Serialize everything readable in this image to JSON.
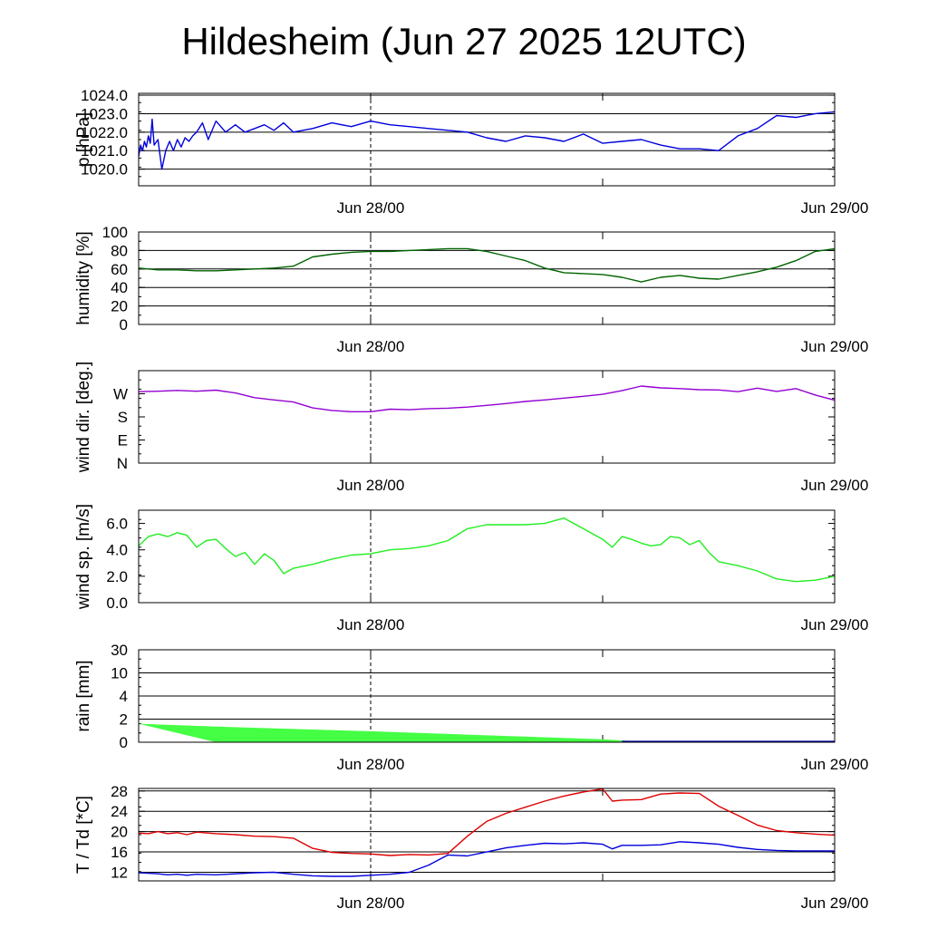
{
  "title": "Hildesheim (Jun 27 2025 12UTC)",
  "x_tick_labels": [
    "Jun 28/00",
    "Jun 29/00"
  ],
  "colors": {
    "pressure": "#0000dd",
    "humidity": "#006400",
    "wind_dir": "#9400d3",
    "wind_speed": "#22ee22",
    "rain_fill": "#44ff44",
    "temperature": "#dd0000",
    "dewpoint": "#0000dd"
  },
  "chart_data": [
    {
      "type": "line",
      "ylabel": "p [hPa]",
      "grid": true,
      "yticks": [
        "1020.0",
        "1021.0",
        "1022.0",
        "1023.0",
        "1024.0"
      ],
      "ylim": [
        1019.1,
        1024.1
      ],
      "xlim": [
        0,
        36
      ],
      "x": [
        0,
        0.1,
        0.2,
        0.3,
        0.4,
        0.5,
        0.6,
        0.7,
        0.8,
        1,
        1.2,
        1.4,
        1.6,
        1.8,
        2,
        2.2,
        2.4,
        2.6,
        2.8,
        3,
        3.3,
        3.6,
        4,
        4.5,
        5,
        5.5,
        6,
        6.5,
        7,
        7.5,
        8,
        9,
        10,
        11,
        12,
        13,
        14,
        15,
        16,
        17,
        18,
        19,
        20,
        21,
        22,
        23,
        24,
        25,
        26,
        27,
        28,
        29,
        30,
        31,
        32,
        33,
        34,
        35,
        36
      ],
      "values": [
        1020.7,
        1021.3,
        1021.0,
        1021.5,
        1021.2,
        1021.8,
        1021.4,
        1022.7,
        1021.3,
        1021.6,
        1020.0,
        1021.0,
        1021.5,
        1021.0,
        1021.6,
        1021.2,
        1021.7,
        1021.5,
        1021.8,
        1022.0,
        1022.5,
        1021.6,
        1022.6,
        1022.0,
        1022.4,
        1022.0,
        1022.2,
        1022.4,
        1022.1,
        1022.5,
        1022.0,
        1022.2,
        1022.5,
        1022.3,
        1022.6,
        1022.4,
        1022.3,
        1022.2,
        1022.1,
        1022.0,
        1021.7,
        1021.5,
        1021.8,
        1021.7,
        1021.5,
        1021.9,
        1021.4,
        1021.5,
        1021.6,
        1021.3,
        1021.1,
        1021.1,
        1021.0,
        1021.8,
        1022.2,
        1022.9,
        1022.8,
        1023.0,
        1023.1
      ]
    },
    {
      "type": "line",
      "ylabel": "humidity [%]",
      "grid": true,
      "yticks": [
        "0",
        "20",
        "40",
        "60",
        "80",
        "100"
      ],
      "ylim": [
        0,
        100
      ],
      "xlim": [
        0,
        36
      ],
      "x": [
        0,
        1,
        2,
        3,
        4,
        5,
        6,
        7,
        8,
        9,
        10,
        11,
        12,
        13,
        14,
        15,
        16,
        17,
        18,
        19,
        20,
        21,
        22,
        23,
        24,
        25,
        26,
        27,
        28,
        29,
        30,
        31,
        32,
        33,
        34,
        35,
        36
      ],
      "values": [
        61,
        59,
        59,
        58,
        58,
        59,
        60,
        61,
        63,
        73,
        76,
        78,
        79,
        79,
        80,
        81,
        82,
        82,
        79,
        74,
        69,
        61,
        56,
        55,
        54,
        51,
        46,
        51,
        53,
        50,
        49,
        53,
        57,
        62,
        69,
        79,
        82
      ]
    },
    {
      "type": "line",
      "ylabel": "wind dir. [deg.]",
      "grid": false,
      "yticks": [
        "N",
        "E",
        "S",
        "W"
      ],
      "ytick_values": [
        0,
        90,
        180,
        270
      ],
      "ylim": [
        0,
        360
      ],
      "xlim": [
        0,
        36
      ],
      "x": [
        0,
        1,
        2,
        3,
        4,
        5,
        6,
        7,
        8,
        9,
        10,
        11,
        12,
        13,
        14,
        15,
        16,
        17,
        18,
        19,
        20,
        21,
        22,
        23,
        24,
        25,
        26,
        27,
        28,
        29,
        30,
        31,
        32,
        33,
        34,
        35,
        36
      ],
      "values": [
        278,
        280,
        283,
        280,
        284,
        273,
        255,
        246,
        238,
        215,
        205,
        200,
        200,
        210,
        208,
        212,
        214,
        218,
        225,
        232,
        240,
        246,
        253,
        260,
        268,
        282,
        300,
        293,
        290,
        286,
        285,
        278,
        292,
        279,
        290,
        265,
        245
      ]
    },
    {
      "type": "line",
      "ylabel": "wind sp. [m/s]",
      "grid": false,
      "yticks": [
        "0.0",
        "2.0",
        "4.0",
        "6.0"
      ],
      "ylim": [
        0,
        7
      ],
      "xlim": [
        0,
        36
      ],
      "x": [
        0,
        0.5,
        1,
        1.5,
        2,
        2.5,
        3,
        3.5,
        4,
        4.5,
        5,
        5.5,
        6,
        6.5,
        7,
        7.5,
        8,
        9,
        10,
        11,
        12,
        13,
        14,
        15,
        16,
        17,
        18,
        19,
        20,
        21,
        22,
        23,
        24,
        24.5,
        25,
        25.5,
        26,
        26.5,
        27,
        27.5,
        28,
        28.5,
        29,
        29.5,
        30,
        31,
        32,
        33,
        34,
        35,
        36
      ],
      "values": [
        4.3,
        5.0,
        5.2,
        5.0,
        5.3,
        5.1,
        4.2,
        4.7,
        4.8,
        4.1,
        3.5,
        3.8,
        2.9,
        3.7,
        3.2,
        2.2,
        2.6,
        2.9,
        3.3,
        3.6,
        3.7,
        4.0,
        4.1,
        4.3,
        4.7,
        5.6,
        5.9,
        5.9,
        5.9,
        6.0,
        6.4,
        5.6,
        4.8,
        4.2,
        5.0,
        4.8,
        4.5,
        4.3,
        4.4,
        5.0,
        4.9,
        4.4,
        4.7,
        3.8,
        3.1,
        2.8,
        2.4,
        1.8,
        1.6,
        1.7,
        2.0
      ]
    },
    {
      "type": "area",
      "ylabel": "rain [mm]",
      "grid": true,
      "yticks": [
        "0",
        "2",
        "4",
        "10",
        "30"
      ],
      "ylim": [
        0,
        30
      ],
      "xlim": [
        0,
        36
      ],
      "x": [
        0,
        4,
        12,
        24,
        26,
        36
      ],
      "upper": [
        1.6,
        1.35,
        0.95,
        0.25,
        0.05,
        0
      ],
      "lower": [
        1.6,
        0,
        0,
        0,
        0,
        0
      ]
    },
    {
      "type": "line",
      "ylabel": "T / Td [*C]",
      "grid": true,
      "yticks": [
        "12",
        "16",
        "20",
        "24",
        "28"
      ],
      "ylim": [
        10.3,
        28.5
      ],
      "xlim": [
        0,
        36
      ],
      "x": [
        0,
        0.5,
        1,
        1.5,
        2,
        2.5,
        3,
        4,
        5,
        6,
        7,
        8,
        9,
        10,
        11,
        12,
        13,
        14,
        15,
        16,
        17,
        18,
        19,
        20,
        21,
        22,
        23,
        24,
        24.5,
        25,
        26,
        27,
        28,
        29,
        30,
        31,
        32,
        33,
        34,
        35,
        36
      ],
      "series": [
        {
          "values": [
            19.7,
            19.6,
            20.0,
            19.6,
            19.8,
            19.4,
            19.9,
            19.6,
            19.4,
            19.1,
            19.0,
            18.7,
            16.7,
            15.9,
            15.7,
            15.6,
            15.3,
            15.5,
            15.4,
            15.7,
            19.1,
            22.0,
            23.6,
            24.8,
            26.0,
            27.0,
            27.8,
            28.4,
            26.0,
            26.2,
            26.3,
            27.4,
            27.6,
            27.5,
            25.0,
            23.2,
            21.3,
            20.2,
            19.8,
            19.5,
            19.3
          ]
        },
        {
          "values": [
            11.9,
            11.8,
            11.7,
            11.5,
            11.6,
            11.4,
            11.6,
            11.5,
            11.7,
            11.9,
            12.0,
            11.6,
            11.3,
            11.2,
            11.2,
            11.4,
            11.6,
            12.0,
            13.4,
            15.4,
            15.2,
            16.0,
            16.8,
            17.3,
            17.7,
            17.6,
            17.8,
            17.5,
            16.6,
            17.3,
            17.3,
            17.4,
            18.0,
            17.8,
            17.5,
            16.9,
            16.5,
            16.3,
            16.2,
            16.2,
            16.2
          ]
        }
      ]
    }
  ]
}
